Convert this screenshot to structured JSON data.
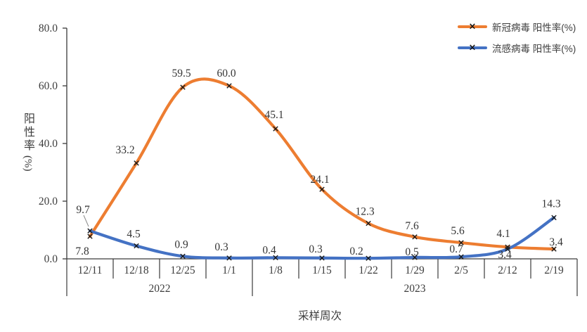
{
  "chart": {
    "y_axis_title": "阳性率",
    "y_axis_unit": "(%)",
    "x_axis_title": "采样周次",
    "marker_glyph": "×",
    "colors": {
      "covid": "#ED7D31",
      "flu": "#4472C4",
      "text": "#3d3d3d",
      "axis": "#3a3a3a",
      "marker": "#1a1a1a"
    }
  },
  "chart_data": {
    "type": "line",
    "smooth": true,
    "marker": "x",
    "title": "",
    "xlabel": "采样周次",
    "ylabel": "阳性率(%)",
    "ylim": [
      0,
      80
    ],
    "ytick_labels": [
      "0.0",
      "20.0",
      "40.0",
      "60.0",
      "80.0"
    ],
    "yticks": [
      0,
      20,
      40,
      60,
      80
    ],
    "grid": false,
    "legend_position": "top-right",
    "categories": [
      "12/11",
      "12/18",
      "12/25",
      "1/1",
      "1/8",
      "1/15",
      "1/22",
      "1/29",
      "2/5",
      "2/12",
      "2/19"
    ],
    "year_groups": [
      {
        "label": "2022",
        "span": 4
      },
      {
        "label": "2023",
        "span": 7
      }
    ],
    "series": [
      {
        "name": "新冠病毒 阳性率(%)",
        "color": "#ED7D31",
        "values": [
          7.8,
          33.2,
          59.5,
          60.0,
          45.1,
          24.1,
          12.3,
          7.6,
          5.6,
          4.1,
          3.4
        ],
        "labels": [
          "7.8",
          "33.2",
          "59.5",
          "60.0",
          "45.1",
          "24.1",
          "12.3",
          "7.6",
          "5.6",
          "4.1",
          "3.4"
        ]
      },
      {
        "name": "流感病毒 阳性率(%)",
        "color": "#4472C4",
        "values": [
          9.7,
          4.5,
          0.9,
          0.3,
          0.4,
          0.3,
          0.2,
          0.5,
          0.7,
          3.4,
          14.3
        ],
        "labels": [
          "9.7",
          "4.5",
          "0.9",
          "0.3",
          "0.4",
          "0.3",
          "0.2",
          "0.5",
          "0.7",
          "3.4",
          "14.3"
        ]
      }
    ]
  }
}
